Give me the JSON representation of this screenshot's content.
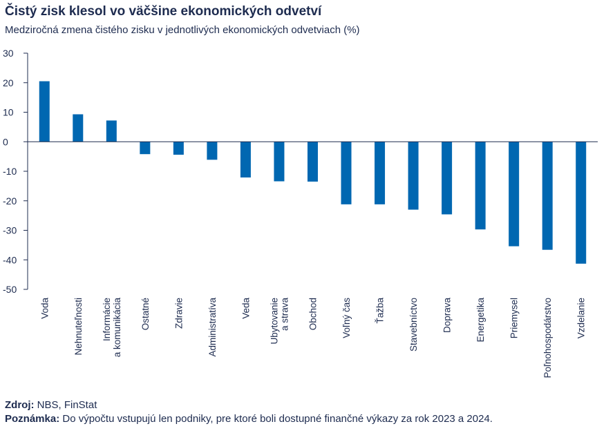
{
  "title": "Čistý zisk klesol vo väčšine ekonomických odvetví",
  "subtitle": "Medziročná zmena čistého zisku v jednotlivých ekonomických odvetviach (%)",
  "source": {
    "label": "Zdroj:",
    "text": " NBS, FinStat"
  },
  "note": {
    "label": "Poznámka:",
    "text": " Do výpočtu vstupujú len podniky, pre ktoré boli dostupné finančné výkazy za rok 2023 a 2024."
  },
  "colors": {
    "bar": "#0067b1",
    "axis": "#1d2b4f"
  },
  "chart_data": {
    "type": "bar",
    "categories": [
      [
        "Voda"
      ],
      [
        "Nehnuteľnosti"
      ],
      [
        "Informácie",
        "a komunikácia"
      ],
      [
        "Ostatné"
      ],
      [
        "Zdravie"
      ],
      [
        "Administratíva"
      ],
      [
        "Veda"
      ],
      [
        "Ubytovanie",
        "a strava"
      ],
      [
        "Obchod"
      ],
      [
        "Voľný čas"
      ],
      [
        "Ťažba"
      ],
      [
        "Stavebníctvo"
      ],
      [
        "Doprava"
      ],
      [
        "Energetika"
      ],
      [
        "Priemysel"
      ],
      [
        "Poľnohospodárstvo"
      ],
      [
        "Vzdelanie"
      ]
    ],
    "values": [
      20.5,
      9.3,
      7.2,
      -4.2,
      -4.4,
      -6.1,
      -12.1,
      -13.4,
      -13.5,
      -21.2,
      -21.2,
      -23.0,
      -24.6,
      -29.7,
      -35.4,
      -36.6,
      -41.3
    ],
    "ylim": [
      -50,
      30
    ],
    "yticks": [
      30,
      20,
      10,
      0,
      -10,
      -20,
      -30,
      -40,
      -50
    ],
    "xlabel": "",
    "ylabel": "",
    "grid": false,
    "legend": "none"
  }
}
